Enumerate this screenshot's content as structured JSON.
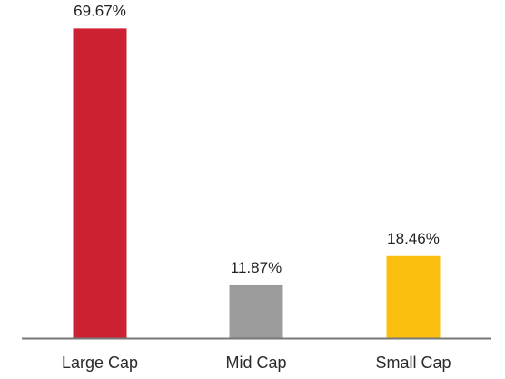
{
  "chart_data": {
    "type": "bar",
    "categories": [
      "Large Cap",
      "Mid Cap",
      "Small Cap"
    ],
    "values": [
      69.67,
      11.87,
      18.46
    ],
    "value_labels": [
      "69.67%",
      "11.87%",
      "18.46%"
    ],
    "colors": [
      "#cc2033",
      "#9b9b9b",
      "#fbbf10"
    ],
    "axis_color": "#777777",
    "ylim": [
      0,
      72
    ],
    "grid": false,
    "title": "",
    "xlabel": "",
    "ylabel": ""
  }
}
